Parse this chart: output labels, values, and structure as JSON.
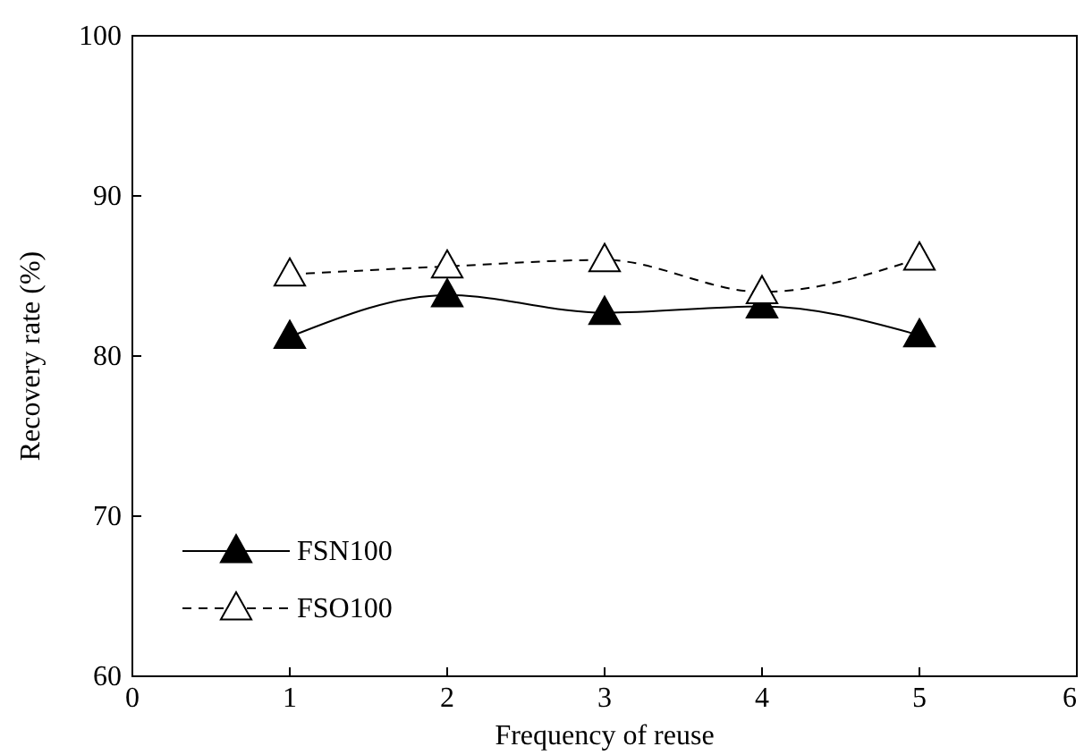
{
  "chart_data": {
    "type": "line",
    "xlabel": "Frequency of reuse",
    "ylabel": "Recovery rate (%)",
    "x": [
      1,
      2,
      3,
      4,
      5
    ],
    "series": [
      {
        "name": "FSN100",
        "color": "#000000",
        "values": [
          81.2,
          83.8,
          82.7,
          83.1,
          81.3
        ],
        "line_style": "solid"
      },
      {
        "name": "FSO100",
        "color": "#000000",
        "values": [
          85.1,
          85.6,
          86.0,
          84.0,
          86.1
        ],
        "line_style": "dashed"
      }
    ],
    "xlim": [
      0,
      6
    ],
    "xticks": [
      0,
      1,
      2,
      3,
      4,
      5,
      6
    ],
    "ylim": [
      60,
      100
    ],
    "yticks": [
      60,
      70,
      80,
      90,
      100
    ],
    "grid": false,
    "legend": "bottom left",
    "marker": "triangle"
  }
}
